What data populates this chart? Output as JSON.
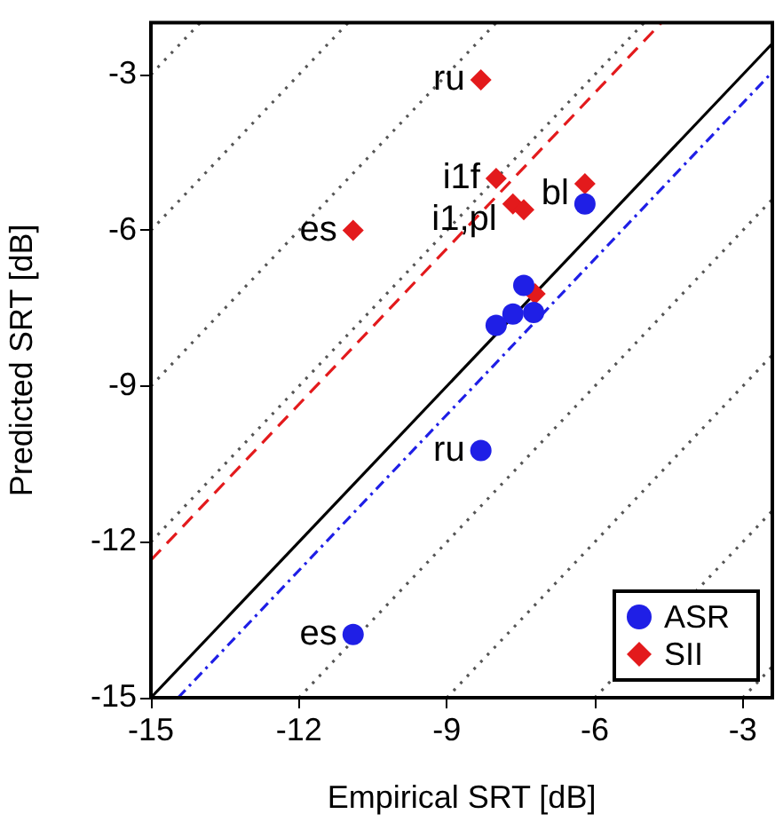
{
  "chart_data": {
    "type": "scatter",
    "xlabel": "Empirical SRT [dB]",
    "ylabel": "Predicted SRT [dB]",
    "xlim": [
      -15,
      -2.4
    ],
    "ylim": [
      -15,
      -2
    ],
    "xticks": [
      -15,
      -12,
      -9,
      -6,
      -3
    ],
    "yticks": [
      -15,
      -12,
      -9,
      -6,
      -3
    ],
    "grid": false,
    "legend": "bottom right",
    "series": [
      {
        "type": "line",
        "color": "#555555",
        "line_style": "dotted",
        "marker": "none",
        "x": [
          -15,
          -5
        ],
        "values": [
          -12,
          -2
        ]
      },
      {
        "type": "line",
        "color": "#555555",
        "line_style": "dotted",
        "marker": "none",
        "x": [
          -15,
          -8
        ],
        "values": [
          -9,
          -2
        ]
      },
      {
        "type": "line",
        "color": "#555555",
        "line_style": "dotted",
        "marker": "none",
        "x": [
          -15,
          -11
        ],
        "values": [
          -6,
          -2
        ]
      },
      {
        "type": "line",
        "color": "#555555",
        "line_style": "dotted",
        "marker": "none",
        "x": [
          -15,
          -14
        ],
        "values": [
          -3,
          -2
        ]
      },
      {
        "type": "line",
        "color": "#555555",
        "line_style": "dotted",
        "marker": "none",
        "x": [
          -12,
          -2.4
        ],
        "values": [
          -15,
          -5.4
        ]
      },
      {
        "type": "line",
        "color": "#555555",
        "line_style": "dotted",
        "marker": "none",
        "x": [
          -9,
          -2.4
        ],
        "values": [
          -15,
          -8.4
        ]
      },
      {
        "type": "line",
        "color": "#555555",
        "line_style": "dotted",
        "marker": "none",
        "x": [
          -6,
          -2.4
        ],
        "values": [
          -15,
          -11.4
        ]
      },
      {
        "type": "line",
        "color": "#555555",
        "line_style": "dotted",
        "marker": "none",
        "x": [
          -3,
          -2.4
        ],
        "values": [
          -15,
          -14.4
        ]
      },
      {
        "type": "line",
        "color": "#000000",
        "line_style": "solid",
        "marker": "none",
        "x": [
          -15,
          -2.4
        ],
        "values": [
          -15,
          -2.4
        ]
      },
      {
        "type": "line",
        "color": "#e31a1c",
        "line_style": "dashed",
        "marker": "none",
        "x": [
          -15,
          -4.65
        ],
        "values": [
          -12.35,
          -2
        ]
      },
      {
        "type": "line",
        "color": "#1f1fe6",
        "line_style": "dashdot",
        "marker": "none",
        "x": [
          -14.45,
          -2.4
        ],
        "values": [
          -15,
          -2.95
        ]
      },
      {
        "name": "ASR",
        "color": "#1f1fe6",
        "marker": "circle",
        "x": [
          -6.2,
          -7.44,
          -7.66,
          -8.0,
          -7.24,
          -8.31,
          -10.9
        ],
        "values": [
          -5.49,
          -7.06,
          -7.61,
          -7.83,
          -7.58,
          -10.24,
          -13.78
        ]
      },
      {
        "name": "SII",
        "color": "#e31a1c",
        "marker": "diamond",
        "x": [
          -8.31,
          -8.0,
          -7.66,
          -7.44,
          -6.2,
          -10.9,
          -7.21
        ],
        "values": [
          -3.1,
          -5.0,
          -5.49,
          -5.6,
          -5.1,
          -6.0,
          -7.22
        ]
      }
    ],
    "annotations": [
      {
        "text": "ru",
        "x": -8.31,
        "y": -3.1
      },
      {
        "text": "i1f",
        "x": -8.0,
        "y": -5.0
      },
      {
        "text": "i1,pl",
        "x": -7.66,
        "y": -5.8
      },
      {
        "text": "bl",
        "x": -6.2,
        "y": -5.3
      },
      {
        "text": "es",
        "x": -10.9,
        "y": -6.0
      },
      {
        "text": "ru",
        "x": -8.31,
        "y": -10.24
      },
      {
        "text": "es",
        "x": -10.9,
        "y": -13.78
      }
    ]
  }
}
